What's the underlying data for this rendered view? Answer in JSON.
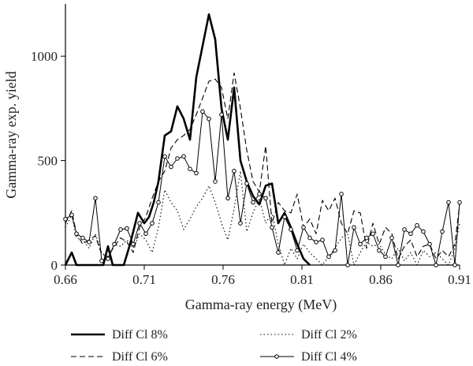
{
  "chart_data": {
    "type": "line",
    "xlabel": "Gamma-ray energy (MeV)",
    "ylabel": "Gamma-ray exp. yield",
    "xlim": [
      0.66,
      0.91
    ],
    "ylim": [
      0,
      1250
    ],
    "xticks": [
      0.66,
      0.71,
      0.76,
      0.81,
      0.86,
      0.91
    ],
    "xtick_labels": [
      "0.66",
      "0.71",
      "0.76",
      "0.81",
      "0.86",
      "0.91"
    ],
    "yticks": [
      0,
      500,
      1000
    ],
    "ytick_labels": [
      "0",
      "500",
      "1000"
    ],
    "grid": false,
    "legend_position": "bottom",
    "series": [
      {
        "name": "Diff Cl 8%",
        "style": "solid-thick",
        "color": "#000000",
        "x": [
          0.66,
          0.664,
          0.667,
          0.684,
          0.687,
          0.689,
          0.69,
          0.693,
          0.697,
          0.701,
          0.706,
          0.71,
          0.713,
          0.716,
          0.719,
          0.723,
          0.727,
          0.731,
          0.735,
          0.739,
          0.743,
          0.747,
          0.751,
          0.755,
          0.759,
          0.763,
          0.767,
          0.771,
          0.775,
          0.779,
          0.783,
          0.787,
          0.791,
          0.795,
          0.799,
          0.803,
          0.807,
          0.811,
          0.815
        ],
        "y": [
          0,
          60,
          0,
          0,
          90,
          30,
          0,
          0,
          0,
          100,
          250,
          200,
          230,
          300,
          400,
          620,
          640,
          760,
          700,
          600,
          900,
          1050,
          1200,
          1080,
          750,
          600,
          850,
          500,
          400,
          330,
          290,
          380,
          390,
          200,
          250,
          180,
          100,
          30,
          0
        ]
      },
      {
        "name": "Diff Cl 6%",
        "style": "dashed",
        "color": "#000000",
        "x": [
          0.66,
          0.664,
          0.667,
          0.671,
          0.675,
          0.679,
          0.683,
          0.687,
          0.691,
          0.695,
          0.699,
          0.703,
          0.707,
          0.711,
          0.715,
          0.719,
          0.723,
          0.727,
          0.731,
          0.735,
          0.739,
          0.743,
          0.747,
          0.751,
          0.755,
          0.759,
          0.763,
          0.767,
          0.771,
          0.775,
          0.779,
          0.783,
          0.787,
          0.791,
          0.795,
          0.799,
          0.803,
          0.807,
          0.811,
          0.815,
          0.819,
          0.823,
          0.827,
          0.831,
          0.835,
          0.839,
          0.843,
          0.847,
          0.851,
          0.855,
          0.859,
          0.863,
          0.867,
          0.871,
          0.875,
          0.879,
          0.883,
          0.887,
          0.891,
          0.895,
          0.899,
          0.903,
          0.907,
          0.91
        ],
        "y": [
          200,
          260,
          150,
          100,
          120,
          140,
          50,
          40,
          90,
          130,
          110,
          60,
          180,
          230,
          320,
          400,
          450,
          560,
          600,
          620,
          650,
          720,
          800,
          880,
          890,
          850,
          700,
          920,
          750,
          550,
          400,
          350,
          570,
          200,
          300,
          260,
          250,
          340,
          180,
          220,
          150,
          310,
          260,
          320,
          200,
          150,
          260,
          250,
          80,
          200,
          100,
          180,
          150,
          30,
          90,
          120,
          40,
          90,
          100,
          30,
          70,
          40,
          100,
          290
        ]
      },
      {
        "name": "Diff Cl 2%",
        "style": "dotted",
        "color": "#000000",
        "x": [
          0.66,
          0.664,
          0.667,
          0.671,
          0.675,
          0.679,
          0.683,
          0.687,
          0.691,
          0.695,
          0.699,
          0.703,
          0.707,
          0.711,
          0.715,
          0.719,
          0.723,
          0.727,
          0.731,
          0.735,
          0.739,
          0.743,
          0.747,
          0.751,
          0.755,
          0.759,
          0.763,
          0.767,
          0.771,
          0.775,
          0.779,
          0.783,
          0.787,
          0.791,
          0.795,
          0.799,
          0.803,
          0.807,
          0.811,
          0.815,
          0.819,
          0.823,
          0.827,
          0.831,
          0.835,
          0.839,
          0.843,
          0.847,
          0.851,
          0.855,
          0.859,
          0.863,
          0.867,
          0.871,
          0.875,
          0.879,
          0.883,
          0.887,
          0.891,
          0.895,
          0.899,
          0.903,
          0.907,
          0.91
        ],
        "y": [
          180,
          240,
          130,
          120,
          80,
          150,
          60,
          30,
          100,
          90,
          120,
          80,
          150,
          120,
          60,
          180,
          360,
          300,
          260,
          170,
          220,
          280,
          320,
          380,
          300,
          200,
          120,
          270,
          450,
          160,
          250,
          320,
          200,
          250,
          100,
          0,
          80,
          30,
          100,
          60,
          30,
          0,
          40,
          80,
          130,
          150,
          0,
          60,
          110,
          90,
          100,
          50,
          30,
          80,
          20,
          60,
          0,
          70,
          40,
          60,
          30,
          0,
          80,
          200
        ]
      },
      {
        "name": "Diff Cl 4%",
        "style": "solid-circle",
        "color": "#000000",
        "x": [
          0.66,
          0.664,
          0.667,
          0.671,
          0.675,
          0.679,
          0.683,
          0.687,
          0.691,
          0.695,
          0.699,
          0.703,
          0.707,
          0.711,
          0.715,
          0.719,
          0.723,
          0.727,
          0.731,
          0.735,
          0.739,
          0.743,
          0.747,
          0.751,
          0.755,
          0.759,
          0.763,
          0.767,
          0.771,
          0.775,
          0.779,
          0.783,
          0.787,
          0.791,
          0.795,
          0.799,
          0.803,
          0.807,
          0.811,
          0.815,
          0.819,
          0.823,
          0.827,
          0.831,
          0.835,
          0.839,
          0.843,
          0.847,
          0.851,
          0.855,
          0.859,
          0.863,
          0.867,
          0.871,
          0.875,
          0.879,
          0.883,
          0.887,
          0.891,
          0.895,
          0.899,
          0.903,
          0.907,
          0.91
        ],
        "y": [
          220,
          240,
          150,
          130,
          110,
          320,
          20,
          30,
          100,
          170,
          175,
          100,
          200,
          150,
          200,
          300,
          520,
          470,
          510,
          520,
          460,
          440,
          735,
          700,
          400,
          720,
          320,
          450,
          200,
          390,
          300,
          340,
          320,
          180,
          60,
          230,
          170,
          70,
          180,
          130,
          110,
          120,
          40,
          70,
          340,
          0,
          180,
          100,
          130,
          150,
          70,
          40,
          130,
          0,
          170,
          150,
          190,
          160,
          100,
          0,
          160,
          300,
          0,
          300
        ]
      }
    ]
  }
}
